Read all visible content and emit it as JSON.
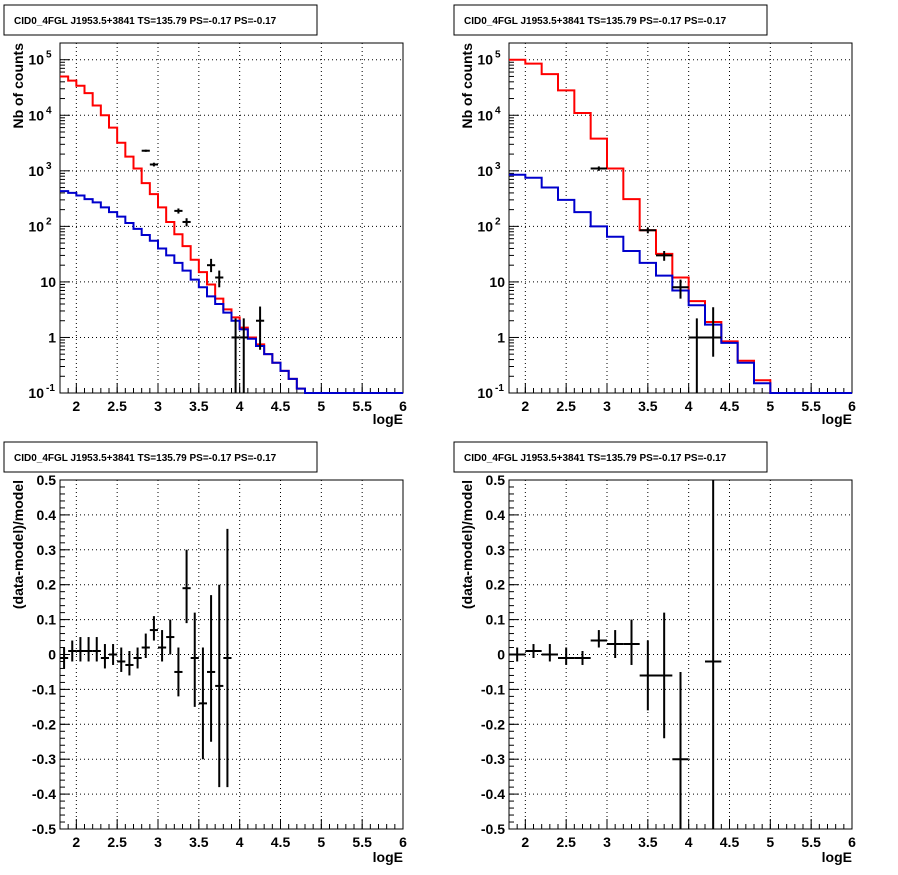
{
  "page_title": "CID0_4FGL J1953.5+3841 TS=135.79 PS=-0.17 PS=-0.17",
  "colors": {
    "data": "#000000",
    "total_model": "#ff0000",
    "source_model": "#0000cc",
    "grid": "#000000"
  },
  "chart_data": [
    {
      "type": "line",
      "title": "CID0_4FGL J1953.5+3841 TS=135.79 PS=-0.17 PS=-0.17",
      "xlabel": "logE",
      "ylabel": "Nb of counts",
      "xlim": [
        1.8,
        6
      ],
      "ylim": [
        0.1,
        200000
      ],
      "yscale": "log",
      "grid": true,
      "x_ticks": [
        "2",
        "2.5",
        "3",
        "3.5",
        "4",
        "4.5",
        "5",
        "5.5",
        "6"
      ],
      "y_ticks": [
        "10^-1",
        "1",
        "10",
        "10^2",
        "10^3",
        "10^4",
        "10^5"
      ],
      "bin_edges": [
        1.8,
        1.9,
        2.0,
        2.1,
        2.2,
        2.3,
        2.4,
        2.5,
        2.6,
        2.7,
        2.8,
        2.9,
        3.0,
        3.1,
        3.2,
        3.3,
        3.4,
        3.5,
        3.6,
        3.7,
        3.8,
        3.9,
        4.0,
        4.1,
        4.2,
        4.3,
        4.4,
        4.5,
        4.6,
        4.7,
        4.8,
        4.9,
        5.0,
        5.1,
        5.2,
        5.3,
        5.4,
        5.5,
        5.6,
        5.7,
        5.8,
        5.9,
        6.0
      ],
      "series": [
        {
          "color": "#ff0000",
          "values": [
            50000,
            42000,
            34000,
            25000,
            15000,
            10000,
            6000,
            3200,
            1800,
            1100,
            600,
            380,
            220,
            120,
            72,
            44,
            25,
            15,
            9,
            5,
            3.2,
            2.3,
            1.5,
            1.0,
            0.75,
            0.5,
            0.35,
            0.25,
            0.18,
            0.12,
            0.1,
            0.1,
            0.1,
            0.1,
            0.1,
            0.1,
            0.1,
            0.1,
            0.1,
            0.1,
            0.1,
            0.1
          ]
        },
        {
          "color": "#0000cc",
          "values": [
            430,
            400,
            360,
            310,
            270,
            220,
            180,
            150,
            115,
            90,
            70,
            55,
            40,
            30,
            22,
            16,
            11,
            8,
            5.5,
            4,
            2.8,
            2,
            1.4,
            0.95,
            0.7,
            0.5,
            0.35,
            0.25,
            0.18,
            0.12,
            0.1,
            0.1,
            0.1,
            0.1,
            0.1,
            0.1,
            0.1,
            0.1,
            0.1,
            0.1,
            0.1,
            0.1
          ]
        }
      ],
      "points": [
        {
          "x": 2.85,
          "y": 2300,
          "xerr": 0.05,
          "ylo": 2200,
          "yhi": 2400
        },
        {
          "x": 2.95,
          "y": 1300,
          "xerr": 0.05,
          "ylo": 1200,
          "yhi": 1400
        },
        {
          "x": 3.25,
          "y": 190,
          "xerr": 0.05,
          "ylo": 170,
          "yhi": 210
        },
        {
          "x": 3.35,
          "y": 120,
          "xerr": 0.05,
          "ylo": 100,
          "yhi": 140
        },
        {
          "x": 3.65,
          "y": 20,
          "xerr": 0.05,
          "ylo": 15,
          "yhi": 26
        },
        {
          "x": 3.75,
          "y": 12,
          "xerr": 0.05,
          "ylo": 8,
          "yhi": 16
        },
        {
          "x": 3.95,
          "y": 1,
          "xerr": 0.05,
          "ylo": 0.1,
          "yhi": 2.2
        },
        {
          "x": 4.05,
          "y": 1,
          "xerr": 0.05,
          "ylo": 0.1,
          "yhi": 2.2
        },
        {
          "x": 4.25,
          "y": 2,
          "xerr": 0.05,
          "ylo": 0.6,
          "yhi": 3.6
        }
      ]
    },
    {
      "type": "line",
      "title": "CID0_4FGL J1953.5+3841 TS=135.79 PS=-0.17 PS=-0.17",
      "xlabel": "logE",
      "ylabel": "Nb of counts",
      "xlim": [
        1.8,
        6
      ],
      "ylim": [
        0.1,
        200000
      ],
      "yscale": "log",
      "grid": true,
      "x_ticks": [
        "2",
        "2.5",
        "3",
        "3.5",
        "4",
        "4.5",
        "5",
        "5.5",
        "6"
      ],
      "y_ticks": [
        "10^-1",
        "1",
        "10",
        "10^2",
        "10^3",
        "10^4",
        "10^5"
      ],
      "bin_edges": [
        1.8,
        2.0,
        2.2,
        2.4,
        2.6,
        2.8,
        3.0,
        3.2,
        3.4,
        3.6,
        3.8,
        4.0,
        4.2,
        4.4,
        4.6,
        4.8,
        5.0,
        5.2,
        5.4,
        5.6,
        5.8,
        6.0
      ],
      "series": [
        {
          "color": "#ff0000",
          "values": [
            100000,
            85000,
            55000,
            28000,
            11000,
            3800,
            1100,
            310,
            85,
            32,
            12,
            4.5,
            1.9,
            0.85,
            0.38,
            0.17,
            0.1,
            0.1,
            0.1,
            0.1,
            0.1
          ]
        },
        {
          "color": "#0000cc",
          "values": [
            850,
            750,
            500,
            300,
            180,
            100,
            65,
            36,
            22,
            13,
            7,
            3.8,
            1.7,
            0.8,
            0.35,
            0.15,
            0.1,
            0.1,
            0.1,
            0.1,
            0.1
          ]
        }
      ],
      "points": [
        {
          "x": 2.9,
          "y": 1100,
          "xerr": 0.1,
          "ylo": 1000,
          "yhi": 1200
        },
        {
          "x": 3.5,
          "y": 85,
          "xerr": 0.1,
          "ylo": 75,
          "yhi": 95
        },
        {
          "x": 3.7,
          "y": 30,
          "xerr": 0.1,
          "ylo": 24,
          "yhi": 36
        },
        {
          "x": 3.9,
          "y": 8,
          "xerr": 0.1,
          "ylo": 5,
          "yhi": 11
        },
        {
          "x": 4.1,
          "y": 1,
          "xerr": 0.1,
          "ylo": 0.1,
          "yhi": 2.2
        },
        {
          "x": 4.3,
          "y": 1,
          "xerr": 0.1,
          "ylo": 0.45,
          "yhi": 3.5
        }
      ]
    },
    {
      "type": "scatter",
      "title": "CID0_4FGL J1953.5+3841 TS=135.79 PS=-0.17 PS=-0.17",
      "xlabel": "logE",
      "ylabel": "(data-model)/model",
      "xlim": [
        1.8,
        6
      ],
      "ylim": [
        -0.5,
        0.5
      ],
      "grid": true,
      "x_ticks": [
        "2",
        "2.5",
        "3",
        "3.5",
        "4",
        "4.5",
        "5",
        "5.5",
        "6"
      ],
      "y_ticks": [
        "-0.5",
        "-0.4",
        "-0.3",
        "-0.2",
        "-0.1",
        "0",
        "0.1",
        "0.2",
        "0.3",
        "0.4",
        "0.5"
      ],
      "points": [
        {
          "x": 1.85,
          "y": -0.01,
          "xerr": 0.05,
          "ylo": -0.04,
          "yhi": 0.02
        },
        {
          "x": 1.95,
          "y": 0.01,
          "xerr": 0.05,
          "ylo": -0.02,
          "yhi": 0.04
        },
        {
          "x": 2.05,
          "y": 0.01,
          "xerr": 0.05,
          "ylo": -0.02,
          "yhi": 0.05
        },
        {
          "x": 2.15,
          "y": 0.01,
          "xerr": 0.05,
          "ylo": -0.02,
          "yhi": 0.05
        },
        {
          "x": 2.25,
          "y": 0.01,
          "xerr": 0.05,
          "ylo": -0.02,
          "yhi": 0.05
        },
        {
          "x": 2.35,
          "y": -0.01,
          "xerr": 0.05,
          "ylo": -0.04,
          "yhi": 0.03
        },
        {
          "x": 2.45,
          "y": 0.0,
          "xerr": 0.05,
          "ylo": -0.03,
          "yhi": 0.03
        },
        {
          "x": 2.55,
          "y": -0.02,
          "xerr": 0.05,
          "ylo": -0.05,
          "yhi": 0.02
        },
        {
          "x": 2.65,
          "y": -0.03,
          "xerr": 0.05,
          "ylo": -0.06,
          "yhi": 0.01
        },
        {
          "x": 2.75,
          "y": -0.01,
          "xerr": 0.05,
          "ylo": -0.04,
          "yhi": 0.02
        },
        {
          "x": 2.85,
          "y": 0.02,
          "xerr": 0.05,
          "ylo": -0.01,
          "yhi": 0.06
        },
        {
          "x": 2.95,
          "y": 0.07,
          "xerr": 0.05,
          "ylo": 0.04,
          "yhi": 0.11
        },
        {
          "x": 3.05,
          "y": 0.02,
          "xerr": 0.05,
          "ylo": -0.02,
          "yhi": 0.07
        },
        {
          "x": 3.15,
          "y": 0.05,
          "xerr": 0.05,
          "ylo": 0.0,
          "yhi": 0.1
        },
        {
          "x": 3.25,
          "y": -0.05,
          "xerr": 0.05,
          "ylo": -0.12,
          "yhi": 0.02
        },
        {
          "x": 3.35,
          "y": 0.19,
          "xerr": 0.05,
          "ylo": 0.09,
          "yhi": 0.3
        },
        {
          "x": 3.45,
          "y": -0.01,
          "xerr": 0.05,
          "ylo": -0.15,
          "yhi": 0.12
        },
        {
          "x": 3.55,
          "y": -0.14,
          "xerr": 0.05,
          "ylo": -0.3,
          "yhi": 0.02
        },
        {
          "x": 3.65,
          "y": -0.05,
          "xerr": 0.05,
          "ylo": -0.25,
          "yhi": 0.17
        },
        {
          "x": 3.75,
          "y": -0.09,
          "xerr": 0.05,
          "ylo": -0.38,
          "yhi": 0.2
        },
        {
          "x": 3.85,
          "y": -0.01,
          "xerr": 0.05,
          "ylo": -0.38,
          "yhi": 0.36
        }
      ]
    },
    {
      "type": "scatter",
      "title": "CID0_4FGL J1953.5+3841 TS=135.79 PS=-0.17 PS=-0.17",
      "xlabel": "logE",
      "ylabel": "(data-model)/model",
      "xlim": [
        1.8,
        6
      ],
      "ylim": [
        -0.5,
        0.5
      ],
      "grid": true,
      "x_ticks": [
        "2",
        "2.5",
        "3",
        "3.5",
        "4",
        "4.5",
        "5",
        "5.5",
        "6"
      ],
      "y_ticks": [
        "-0.5",
        "-0.4",
        "-0.3",
        "-0.2",
        "-0.1",
        "0",
        "0.1",
        "0.2",
        "0.3",
        "0.4",
        "0.5"
      ],
      "points": [
        {
          "x": 1.9,
          "y": 0.0,
          "xerr": 0.1,
          "ylo": -0.02,
          "yhi": 0.02
        },
        {
          "x": 2.1,
          "y": 0.01,
          "xerr": 0.1,
          "ylo": -0.01,
          "yhi": 0.03
        },
        {
          "x": 2.3,
          "y": 0.0,
          "xerr": 0.1,
          "ylo": -0.02,
          "yhi": 0.03
        },
        {
          "x": 2.5,
          "y": -0.01,
          "xerr": 0.1,
          "ylo": -0.03,
          "yhi": 0.02
        },
        {
          "x": 2.7,
          "y": -0.01,
          "xerr": 0.1,
          "ylo": -0.03,
          "yhi": 0.01
        },
        {
          "x": 2.9,
          "y": 0.04,
          "xerr": 0.1,
          "ylo": 0.02,
          "yhi": 0.07
        },
        {
          "x": 3.1,
          "y": 0.03,
          "xerr": 0.1,
          "ylo": -0.01,
          "yhi": 0.07
        },
        {
          "x": 3.3,
          "y": 0.03,
          "xerr": 0.1,
          "ylo": -0.03,
          "yhi": 0.1
        },
        {
          "x": 3.5,
          "y": -0.06,
          "xerr": 0.1,
          "ylo": -0.16,
          "yhi": 0.04
        },
        {
          "x": 3.7,
          "y": -0.06,
          "xerr": 0.1,
          "ylo": -0.24,
          "yhi": 0.12
        },
        {
          "x": 3.9,
          "y": -0.3,
          "xerr": 0.1,
          "ylo": -0.5,
          "yhi": -0.05
        },
        {
          "x": 4.3,
          "y": -0.02,
          "xerr": 0.1,
          "ylo": -0.5,
          "yhi": 0.5
        }
      ]
    }
  ]
}
